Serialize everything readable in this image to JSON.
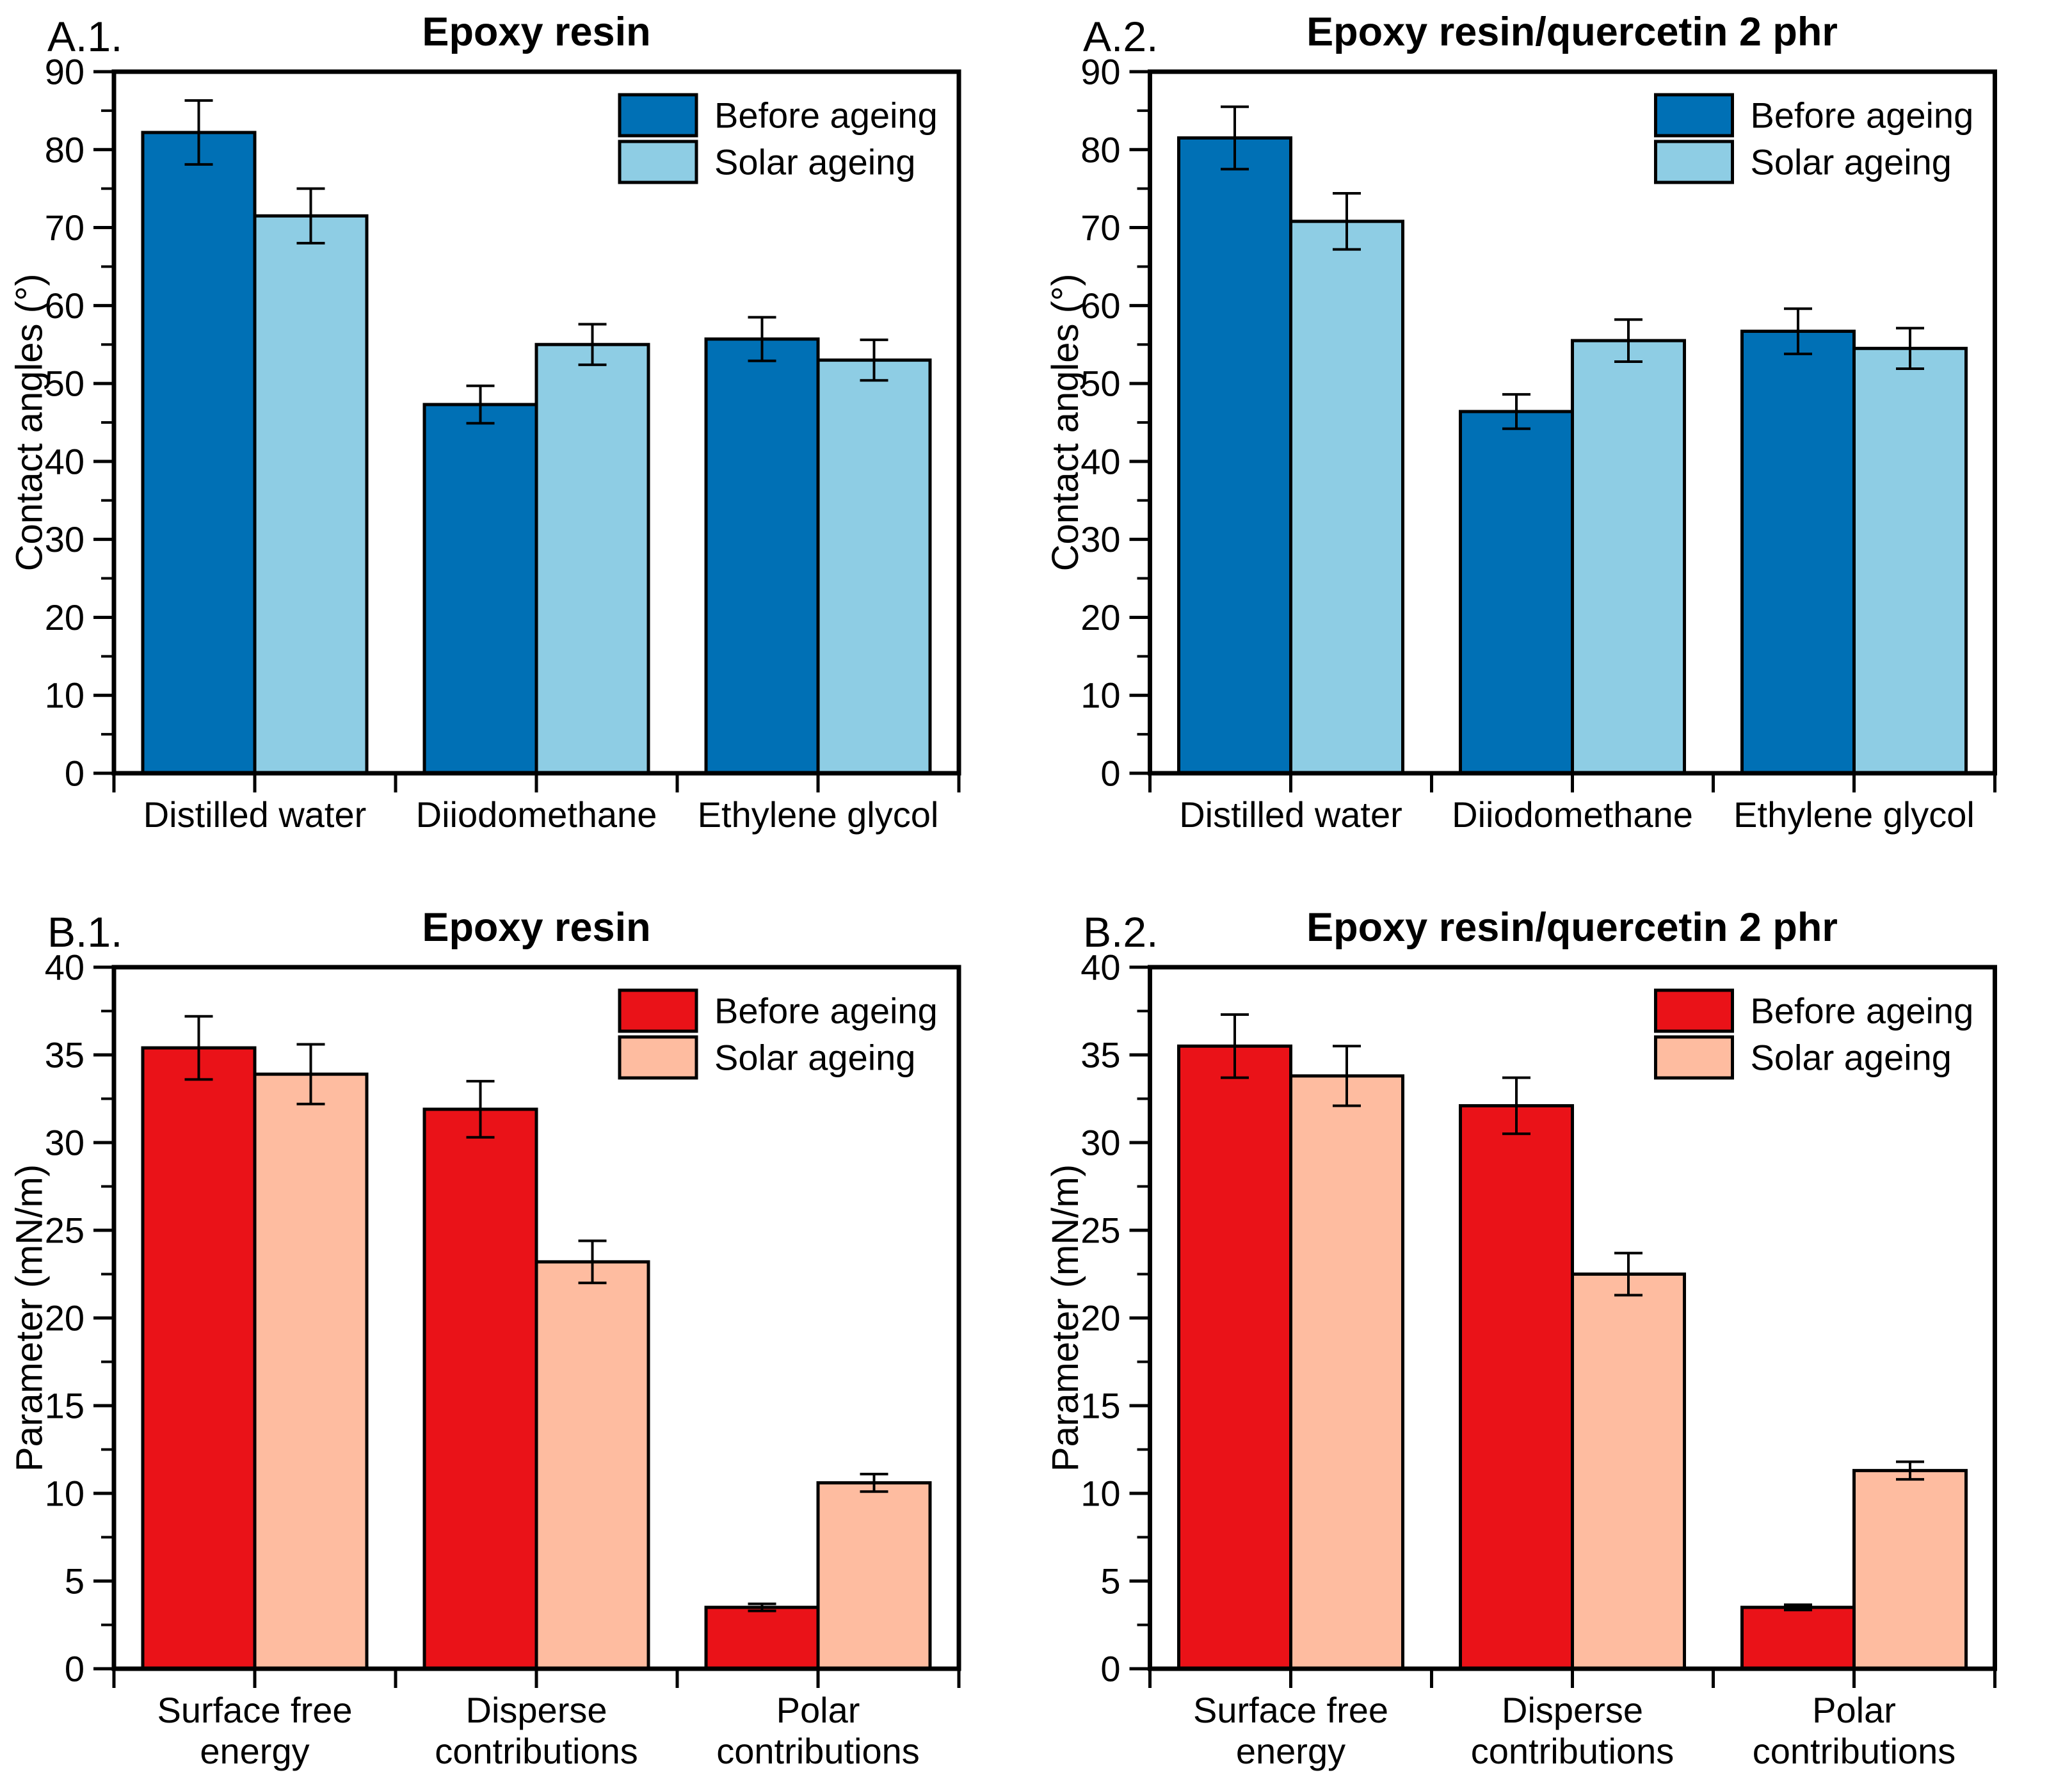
{
  "colors": {
    "before_blue": "#0070B5",
    "solar_blue": "#8ECDE4",
    "before_red": "#EA1218",
    "solar_salmon": "#FEBCA0",
    "axis": "#000000",
    "background": "#FFFFFF"
  },
  "chart_data": [
    {
      "type": "bar",
      "panel_label": "A.1.",
      "title": "Epoxy resin",
      "ylabel": "Contact angles (°)",
      "ylim": [
        0,
        90
      ],
      "ytick_major": 10,
      "ytick_minor": 5,
      "grid": false,
      "legend_position": "top-right",
      "categories": [
        [
          "Distilled water"
        ],
        [
          "Diiodomethane"
        ],
        [
          "Ethylene glycol"
        ]
      ],
      "series": [
        {
          "name": "Before ageing",
          "color": "#0070B5",
          "values": [
            82.2,
            47.3,
            55.7
          ],
          "errors": [
            4.1,
            2.4,
            2.8
          ]
        },
        {
          "name": "Solar ageing",
          "color": "#8ECDE4",
          "values": [
            71.5,
            55.0,
            53.0
          ],
          "errors": [
            3.5,
            2.6,
            2.6
          ]
        }
      ]
    },
    {
      "type": "bar",
      "panel_label": "A.2.",
      "title": "Epoxy resin/quercetin 2 phr",
      "ylabel": "Contact angles (°)",
      "ylim": [
        0,
        90
      ],
      "ytick_major": 10,
      "ytick_minor": 5,
      "grid": false,
      "legend_position": "top-right",
      "categories": [
        [
          "Distilled water"
        ],
        [
          "Diiodomethane"
        ],
        [
          "Ethylene glycol"
        ]
      ],
      "series": [
        {
          "name": "Before ageing",
          "color": "#0070B5",
          "values": [
            81.5,
            46.4,
            56.7
          ],
          "errors": [
            4.0,
            2.2,
            2.9
          ]
        },
        {
          "name": "Solar ageing",
          "color": "#8ECDE4",
          "values": [
            70.8,
            55.5,
            54.5
          ],
          "errors": [
            3.6,
            2.7,
            2.6
          ]
        }
      ]
    },
    {
      "type": "bar",
      "panel_label": "B.1.",
      "title": "Epoxy resin",
      "ylabel": "Parameter (mN/m)",
      "ylim": [
        0,
        40
      ],
      "ytick_major": 5,
      "ytick_minor": 2.5,
      "grid": false,
      "legend_position": "top-right",
      "categories": [
        [
          "Surface free",
          "energy"
        ],
        [
          "Disperse",
          "contributions"
        ],
        [
          "Polar",
          "contributions"
        ]
      ],
      "series": [
        {
          "name": "Before ageing",
          "color": "#EA1218",
          "values": [
            35.4,
            31.9,
            3.5
          ],
          "errors": [
            1.8,
            1.6,
            0.2
          ]
        },
        {
          "name": "Solar ageing",
          "color": "#FEBCA0",
          "values": [
            33.9,
            23.2,
            10.6
          ],
          "errors": [
            1.7,
            1.2,
            0.5
          ]
        }
      ]
    },
    {
      "type": "bar",
      "panel_label": "B.2.",
      "title": "Epoxy resin/quercetin 2 phr",
      "ylabel": "Parameter (mN/m)",
      "ylim": [
        0,
        40
      ],
      "ytick_major": 5,
      "ytick_minor": 2.5,
      "grid": false,
      "legend_position": "top-right",
      "categories": [
        [
          "Surface free",
          "energy"
        ],
        [
          "Disperse",
          "contributions"
        ],
        [
          "Polar",
          "contributions"
        ]
      ],
      "series": [
        {
          "name": "Before ageing",
          "color": "#EA1218",
          "values": [
            35.5,
            32.1,
            3.5
          ],
          "errors": [
            1.8,
            1.6,
            0.15
          ]
        },
        {
          "name": "Solar ageing",
          "color": "#FEBCA0",
          "values": [
            33.8,
            22.5,
            11.3
          ],
          "errors": [
            1.7,
            1.2,
            0.5
          ]
        }
      ]
    }
  ]
}
